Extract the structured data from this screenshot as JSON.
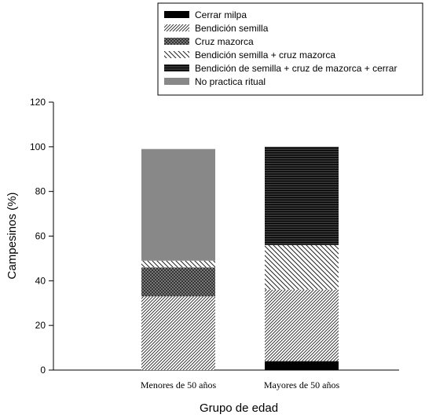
{
  "chart_data": {
    "type": "bar",
    "stacked": true,
    "title": "",
    "xlabel": "Grupo de edad",
    "ylabel": "Campesinos (%)",
    "ylim": [
      0,
      120
    ],
    "yticks": [
      0,
      20,
      40,
      60,
      80,
      100,
      120
    ],
    "grid": false,
    "legend_position": "top-right",
    "categories": [
      "Menores de 50 años",
      "Mayores de 50 años"
    ],
    "series": [
      {
        "name": "Cerrar milpa",
        "values": [
          0,
          4
        ],
        "pattern": "solid-black"
      },
      {
        "name": "Bendición semilla",
        "values": [
          33,
          32
        ],
        "pattern": "diagonal-fine"
      },
      {
        "name": "Cruz mazorca",
        "values": [
          13,
          0
        ],
        "pattern": "crosshatch-dark"
      },
      {
        "name": "Bendición semilla + cruz mazorca",
        "values": [
          3,
          20
        ],
        "pattern": "backdiagonal"
      },
      {
        "name": "Bendición de semilla + cruz de mazorca + cerrar",
        "values": [
          0,
          44
        ],
        "pattern": "horizontal-lines"
      },
      {
        "name": "No practica ritual",
        "values": [
          50,
          0
        ],
        "pattern": "solid-gray"
      }
    ]
  }
}
